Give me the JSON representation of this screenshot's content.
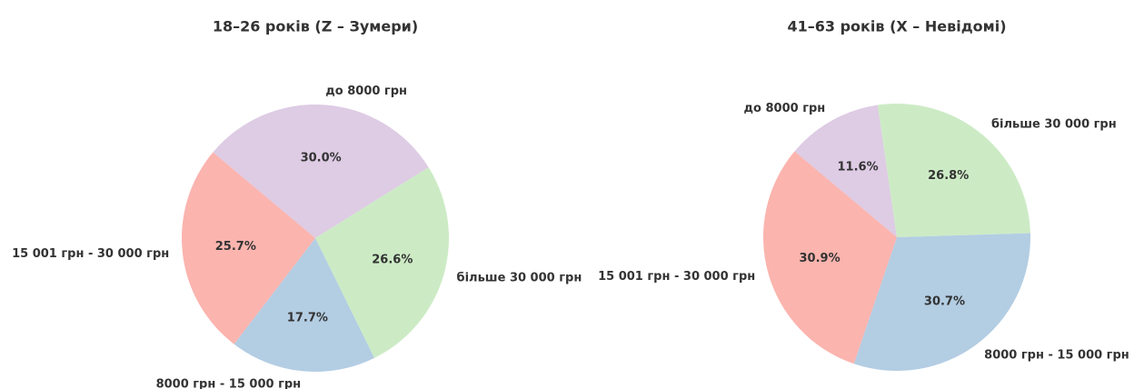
{
  "chart_data": [
    {
      "type": "pie",
      "title": "18–26 років (Z – Зумери)",
      "categories": [
        "до 8000 грн",
        "більше 30 000 грн",
        "8000 грн - 15 000 грн",
        "15 001 грн - 30 000 грн"
      ],
      "values": [
        30.0,
        26.6,
        17.7,
        25.7
      ],
      "value_labels": [
        "30.0%",
        "26.6%",
        "17.7%",
        "25.7%"
      ],
      "colors": [
        "#decbe4",
        "#ccebc5",
        "#b3cde3",
        "#fbb4ae"
      ]
    },
    {
      "type": "pie",
      "title": "41–63 років (X – Невідомі)",
      "categories": [
        "до 8000 грн",
        "більше 30 000 грн",
        "8000 грн - 15 000 грн",
        "15 001 грн - 30 000 грн"
      ],
      "values": [
        11.6,
        26.8,
        30.7,
        30.9
      ],
      "value_labels": [
        "11.6%",
        "26.8%",
        "30.7%",
        "30.9%"
      ],
      "colors": [
        "#decbe4",
        "#ccebc5",
        "#b3cde3",
        "#fbb4ae"
      ]
    }
  ]
}
